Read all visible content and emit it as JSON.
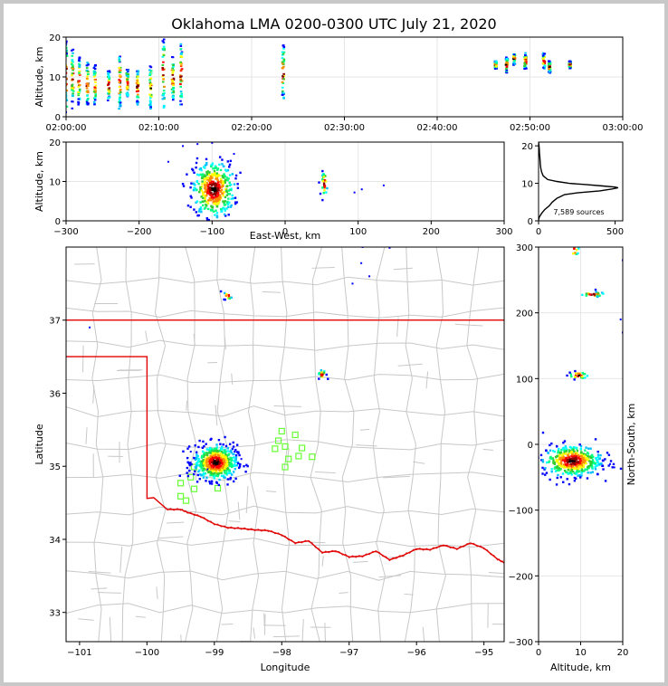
{
  "title": "Oklahoma LMA 0200-0300 UTC July 21, 2020",
  "colors": {
    "frame_bg": "#c8c8c8",
    "boundary_red": "#e00000",
    "county_gray": "#c8c8c8",
    "station_green": "#66ff33",
    "grid": "#e6e6e6",
    "source_palette": [
      "#0000ff",
      "#00bfff",
      "#00ffff",
      "#00ff7f",
      "#32cd32",
      "#ffff00",
      "#ff8c00",
      "#ff0000",
      "#8b0000",
      "#000000"
    ]
  },
  "chart_data": [
    {
      "id": "time-height",
      "type": "scatter",
      "ylabel": "Altitude, km",
      "xlabel": "",
      "xlim_minutes": [
        0,
        60
      ],
      "ylim": [
        0,
        20
      ],
      "xticks": [
        0,
        10,
        20,
        30,
        40,
        50,
        60
      ],
      "xtick_labels": [
        "02:00:00",
        "02:10:00",
        "02:20:00",
        "02:30:00",
        "02:40:00",
        "02:50:00",
        "03:00:00"
      ],
      "yticks": [
        0,
        10,
        20
      ],
      "grid": true,
      "point_columns_minutes": [
        0,
        0.7,
        1.4,
        2.3,
        3.1,
        4.6,
        5.8,
        6.6,
        7.7,
        9.1,
        10.5,
        11.5,
        12.4,
        23.4,
        46.3,
        47.5,
        48.3,
        49.5,
        51.5,
        52.1,
        54.3
      ],
      "point_column_altitude_ranges_km": [
        [
          1,
          19
        ],
        [
          2,
          17
        ],
        [
          3,
          15
        ],
        [
          3,
          14
        ],
        [
          3,
          13
        ],
        [
          4,
          12
        ],
        [
          2,
          16
        ],
        [
          5,
          12
        ],
        [
          3,
          12
        ],
        [
          2,
          13
        ],
        [
          2,
          20
        ],
        [
          4,
          15
        ],
        [
          3,
          19
        ],
        [
          4,
          18
        ],
        [
          12,
          14
        ],
        [
          11,
          15
        ],
        [
          13,
          16
        ],
        [
          12,
          16
        ],
        [
          12,
          16
        ],
        [
          11,
          14
        ],
        [
          12,
          14
        ]
      ]
    },
    {
      "id": "east-west-altitude",
      "type": "scatter",
      "xlabel": "East-West, km",
      "ylabel": "Altitude, km",
      "xlim": [
        -300,
        300
      ],
      "ylim": [
        0,
        20
      ],
      "xticks": [
        -300,
        -200,
        -100,
        0,
        100,
        200,
        300
      ],
      "yticks": [
        0,
        10,
        20
      ],
      "grid": true,
      "clusters": [
        {
          "x_center_km": -98,
          "x_spread_km": 14,
          "alt_center_km": 8,
          "alt_spread_km": 3.5
        },
        {
          "x_center_km": 54,
          "x_spread_km": 2,
          "alt_center_km": 9.5,
          "alt_spread_km": 1.5
        }
      ]
    },
    {
      "id": "altitude-histogram",
      "type": "line",
      "xlim": [
        0,
        550
      ],
      "ylim": [
        0,
        21
      ],
      "xticks": [
        0,
        500
      ],
      "yticks": [
        0,
        10,
        20
      ],
      "annotation": "7,589 sources",
      "profile_altitude_km": [
        0.2,
        1,
        2,
        3,
        4,
        5,
        6,
        7,
        7.5,
        8,
        8.5,
        8.8,
        9,
        9.3,
        9.7,
        10,
        10.5,
        11,
        12,
        13,
        14,
        15,
        16,
        17,
        18,
        19,
        20,
        21
      ],
      "profile_counts": [
        0,
        5,
        20,
        40,
        70,
        90,
        120,
        170,
        260,
        400,
        480,
        520,
        500,
        420,
        300,
        200,
        120,
        60,
        30,
        20,
        15,
        12,
        10,
        8,
        6,
        5,
        3,
        0
      ]
    },
    {
      "id": "plan-view-map",
      "type": "scatter",
      "xlabel": "Longitude",
      "ylabel": "Latitude",
      "xlim": [
        -101.2,
        -94.7
      ],
      "ylim": [
        32.6,
        38
      ],
      "xticks": [
        -101,
        -100,
        -99,
        -98,
        -97,
        -96,
        -95
      ],
      "yticks": [
        33,
        34,
        35,
        36,
        37
      ],
      "state_boundary_lonlat": [
        [
          [
            -101.2,
            37.0
          ],
          [
            -94.7,
            37.0
          ]
        ],
        [
          [
            -101.2,
            36.5
          ],
          [
            -100.0,
            36.5
          ],
          [
            -100.0,
            34.56
          ],
          [
            -99.9,
            34.57
          ],
          [
            -99.7,
            34.41
          ],
          [
            -99.5,
            34.41
          ],
          [
            -99.4,
            34.37
          ],
          [
            -99.2,
            34.31
          ],
          [
            -99.0,
            34.21
          ],
          [
            -98.8,
            34.16
          ],
          [
            -98.6,
            34.15
          ],
          [
            -98.4,
            34.13
          ],
          [
            -98.2,
            34.12
          ],
          [
            -98.0,
            34.06
          ],
          [
            -97.8,
            33.95
          ],
          [
            -97.6,
            33.98
          ],
          [
            -97.4,
            33.82
          ],
          [
            -97.2,
            33.84
          ],
          [
            -97.0,
            33.76
          ],
          [
            -96.8,
            33.77
          ],
          [
            -96.6,
            33.84
          ],
          [
            -96.4,
            33.72
          ],
          [
            -96.2,
            33.78
          ],
          [
            -96.0,
            33.87
          ],
          [
            -95.8,
            33.86
          ],
          [
            -95.6,
            33.92
          ],
          [
            -95.4,
            33.87
          ],
          [
            -95.2,
            33.95
          ],
          [
            -95.0,
            33.88
          ],
          [
            -94.8,
            33.73
          ],
          [
            -94.7,
            33.68
          ]
        ]
      ],
      "station_lonlat": [
        [
          -98.0,
          35.48
        ],
        [
          -97.8,
          35.43
        ],
        [
          -98.05,
          35.35
        ],
        [
          -97.95,
          35.27
        ],
        [
          -98.1,
          35.24
        ],
        [
          -97.7,
          35.25
        ],
        [
          -97.55,
          35.13
        ],
        [
          -97.75,
          35.14
        ],
        [
          -97.9,
          35.1
        ],
        [
          -97.95,
          34.99
        ],
        [
          -99.3,
          34.99
        ],
        [
          -99.35,
          34.85
        ],
        [
          -99.5,
          34.77
        ],
        [
          -99.3,
          34.69
        ],
        [
          -98.95,
          34.7
        ],
        [
          -99.5,
          34.59
        ],
        [
          -99.42,
          34.53
        ]
      ],
      "source_clusters_lonlat": [
        {
          "lon": -98.98,
          "lat": 35.05,
          "spread_lon": 0.16,
          "spread_lat": 0.12,
          "count": 520
        },
        {
          "lon": -97.4,
          "lat": 36.26,
          "spread_lon": 0.03,
          "spread_lat": 0.03,
          "count": 25
        },
        {
          "lon": -98.8,
          "lat": 37.33,
          "spread_lon": 0.03,
          "spread_lat": 0.03,
          "count": 12
        }
      ],
      "scattered_sources_lonlat": [
        [
          -99.35,
          35.2
        ],
        [
          -98.7,
          35.2
        ],
        [
          -100.85,
          36.9
        ],
        [
          -96.82,
          37.78
        ],
        [
          -96.7,
          37.6
        ],
        [
          -96.4,
          37.99
        ],
        [
          -96.8,
          38.0
        ],
        [
          -96.95,
          37.5
        ],
        [
          -99.1,
          34.96
        ],
        [
          -98.6,
          35.1
        ]
      ]
    },
    {
      "id": "altitude-north-south",
      "type": "scatter",
      "xlabel": "Altitude, km",
      "ylabel": "North-South, km",
      "xlim": [
        0,
        20
      ],
      "ylim": [
        -300,
        300
      ],
      "xticks": [
        0,
        10,
        20
      ],
      "yticks": [
        -300,
        -200,
        -100,
        0,
        100,
        200,
        300
      ],
      "grid": true,
      "clusters": [
        {
          "alt_center_km": 8,
          "alt_spread_km": 3.5,
          "y_center_km": -25,
          "y_spread_km": 12
        },
        {
          "alt_center_km": 9.5,
          "alt_spread_km": 1.2,
          "y_center_km": 105,
          "y_spread_km": 3
        },
        {
          "alt_center_km": 13,
          "alt_spread_km": 1.5,
          "y_center_km": 228,
          "y_spread_km": 2
        },
        {
          "alt_center_km": 8.5,
          "alt_spread_km": 0.6,
          "y_center_km": 295,
          "y_spread_km": 5
        }
      ]
    }
  ]
}
